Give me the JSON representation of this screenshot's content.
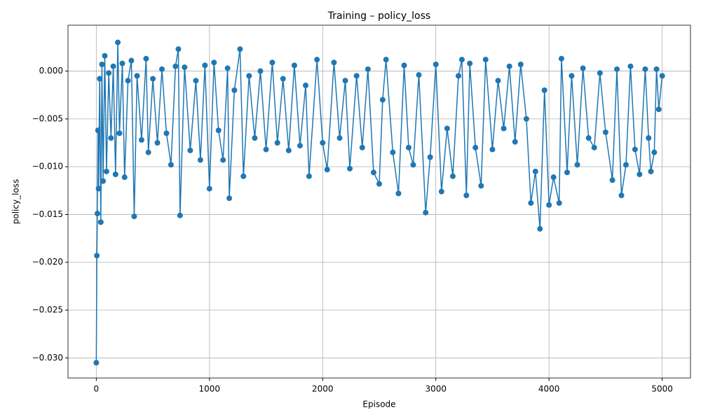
{
  "chart_data": {
    "type": "line",
    "title": "Training – policy_loss",
    "xlabel": "Episode",
    "ylabel": "policy_loss",
    "x": [
      0,
      5,
      10,
      15,
      20,
      30,
      40,
      50,
      60,
      75,
      90,
      110,
      130,
      150,
      170,
      190,
      205,
      230,
      250,
      280,
      310,
      335,
      360,
      400,
      440,
      460,
      500,
      540,
      580,
      620,
      660,
      700,
      725,
      740,
      780,
      830,
      880,
      920,
      960,
      1000,
      1040,
      1080,
      1120,
      1160,
      1175,
      1220,
      1270,
      1300,
      1350,
      1400,
      1450,
      1500,
      1555,
      1600,
      1650,
      1700,
      1750,
      1800,
      1850,
      1880,
      1950,
      2000,
      2040,
      2100,
      2150,
      2200,
      2240,
      2300,
      2350,
      2400,
      2450,
      2500,
      2530,
      2560,
      2620,
      2670,
      2720,
      2760,
      2800,
      2850,
      2910,
      2950,
      3000,
      3050,
      3100,
      3150,
      3200,
      3230,
      3270,
      3300,
      3350,
      3400,
      3440,
      3500,
      3550,
      3600,
      3650,
      3700,
      3750,
      3800,
      3840,
      3880,
      3920,
      3960,
      4000,
      4040,
      4090,
      4110,
      4160,
      4200,
      4250,
      4300,
      4350,
      4400,
      4450,
      4500,
      4560,
      4600,
      4640,
      4680,
      4720,
      4760,
      4800,
      4850,
      4880,
      4900,
      4930,
      4950,
      4970,
      5000
    ],
    "series": [
      {
        "name": "policy_loss",
        "color": "#1f77b4",
        "values": [
          -0.0305,
          -0.0193,
          -0.0149,
          -0.0062,
          -0.0123,
          -0.0008,
          -0.0158,
          0.0007,
          -0.0115,
          0.0016,
          -0.0105,
          -0.0002,
          -0.007,
          0.0005,
          -0.0108,
          0.003,
          -0.0065,
          0.0008,
          -0.0111,
          -0.001,
          0.0011,
          -0.0152,
          -0.0005,
          -0.0072,
          0.0013,
          -0.0085,
          -0.0008,
          -0.0075,
          0.0002,
          -0.0065,
          -0.0098,
          0.0005,
          0.0023,
          -0.0151,
          0.0004,
          -0.0083,
          -0.001,
          -0.0093,
          0.0006,
          -0.0123,
          0.0009,
          -0.0062,
          -0.0093,
          0.0003,
          -0.0133,
          -0.002,
          0.0023,
          -0.011,
          -0.0005,
          -0.007,
          0.0,
          -0.0082,
          0.0009,
          -0.0075,
          -0.0008,
          -0.0083,
          0.0006,
          -0.0078,
          -0.0015,
          -0.011,
          0.0012,
          -0.0075,
          -0.0103,
          0.0009,
          -0.007,
          -0.001,
          -0.0102,
          -0.0005,
          -0.008,
          0.0002,
          -0.0106,
          -0.0118,
          -0.003,
          0.0012,
          -0.0085,
          -0.0128,
          0.0006,
          -0.008,
          -0.0098,
          -0.0004,
          -0.0148,
          -0.009,
          0.0007,
          -0.0126,
          -0.006,
          -0.011,
          -0.0005,
          0.0012,
          -0.013,
          0.0008,
          -0.008,
          -0.012,
          0.0012,
          -0.0082,
          -0.001,
          -0.006,
          0.0005,
          -0.0074,
          0.0007,
          -0.005,
          -0.0138,
          -0.0105,
          -0.0165,
          -0.002,
          -0.014,
          -0.0111,
          -0.0138,
          0.0013,
          -0.0106,
          -0.0005,
          -0.0098,
          0.0003,
          -0.007,
          -0.008,
          -0.0002,
          -0.0064,
          -0.0114,
          0.0002,
          -0.013,
          -0.0098,
          0.0005,
          -0.0082,
          -0.0108,
          0.0002,
          -0.007,
          -0.0105,
          -0.0085,
          0.0002,
          -0.004,
          -0.0005
        ]
      }
    ],
    "xlim": [
      -250,
      5250
    ],
    "xticks": [
      0,
      1000,
      2000,
      3000,
      4000,
      5000
    ],
    "ylim": [
      -0.0321,
      0.0048
    ],
    "yticks": [
      {
        "value": -0.03,
        "label": "−0.030"
      },
      {
        "value": -0.025,
        "label": "−0.025"
      },
      {
        "value": -0.02,
        "label": "−0.020"
      },
      {
        "value": -0.015,
        "label": "−0.015"
      },
      {
        "value": -0.01,
        "label": "−0.010"
      },
      {
        "value": -0.005,
        "label": "−0.005"
      },
      {
        "value": 0,
        "label": "0.000"
      }
    ],
    "grid": true
  }
}
